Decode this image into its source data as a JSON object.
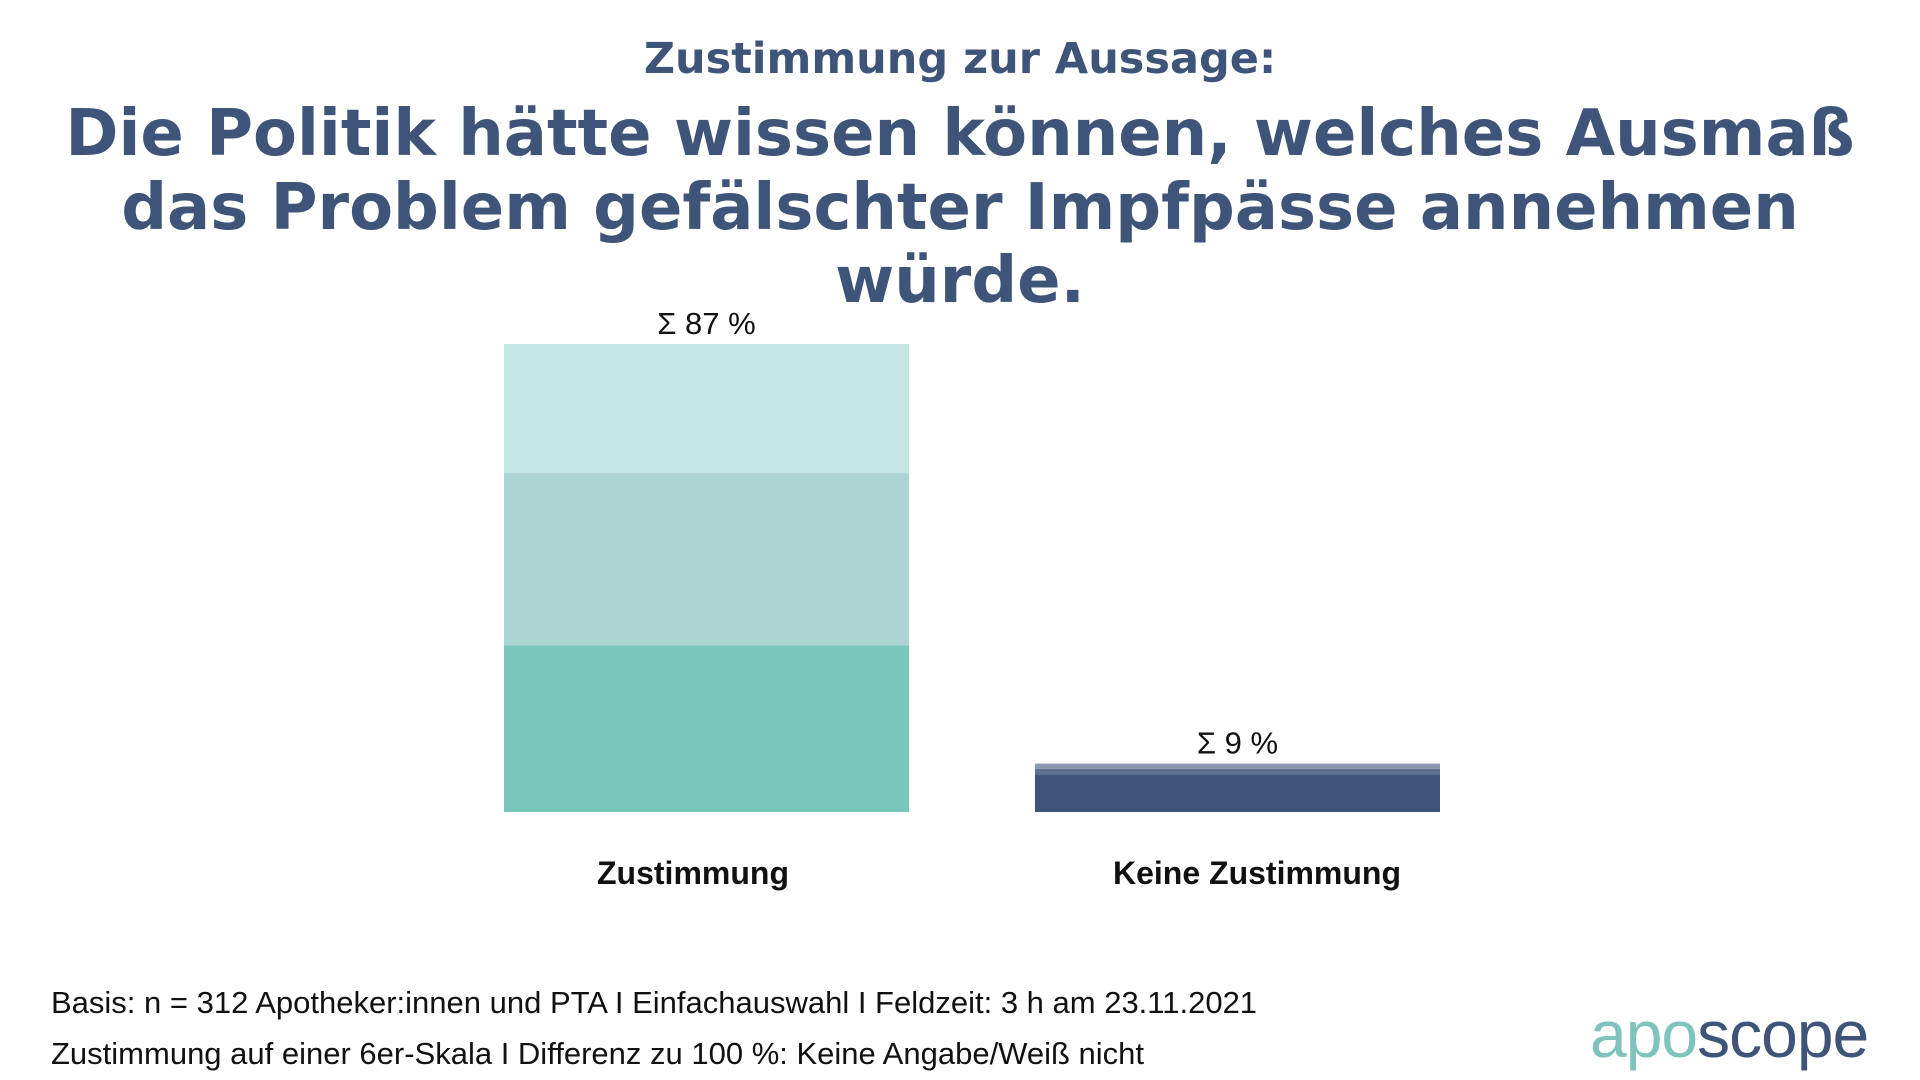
{
  "header": {
    "subtitle": "Zustimmung zur Aussage:",
    "title": "Die Politik hätte wissen können, welches Ausmaß das Problem gefälschter Impfpässe annehmen würde."
  },
  "footnotes": {
    "line1": "Basis: n = 312 Apotheker:innen und PTA I Einfachauswahl I Feldzeit: 3 h am 23.11.2021",
    "line2": "Zustimmung auf einer 6er-Skala I Differenz zu 100 %: Keine Angabe/Weiß nicht"
  },
  "logo": {
    "part1": "apo",
    "part2": "scope"
  },
  "chart_data": {
    "type": "bar",
    "stacked": true,
    "categories": [
      "Zustimmung",
      "Keine Zustimmung"
    ],
    "totals": [
      87,
      9
    ],
    "total_labels": [
      "Σ 87  %",
      "Σ 9  %"
    ],
    "ylim": [
      0,
      87
    ],
    "segments": [
      {
        "values": [
          31,
          7
        ],
        "colors": [
          "#79c6bc",
          "#3e5479"
        ]
      },
      {
        "values": [
          32,
          1
        ],
        "colors": [
          "#acd4d3",
          "#5e7291"
        ]
      },
      {
        "values": [
          24,
          1
        ],
        "colors": [
          "#c5e7e4",
          "#8a9ab0"
        ]
      }
    ],
    "segment_note": "bottom to top"
  }
}
